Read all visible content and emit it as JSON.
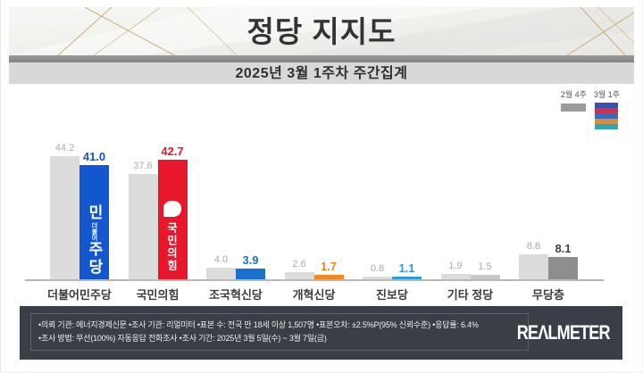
{
  "header": {
    "title": "정당 지지도",
    "subtitle": "2025년 3월 1주차 주간집계"
  },
  "legend": {
    "prev": {
      "label": "2월 4주",
      "color": "#9b9b9b"
    },
    "curr": {
      "label": "3월 1주",
      "colors": [
        "#3354b0",
        "#cc3350",
        "#2f6fc3",
        "#d98c44",
        "#2fa6b3"
      ]
    }
  },
  "chart_data": {
    "type": "bar",
    "title": "정당 지지도",
    "subtitle": "2025년 3월 1주차 주간집계",
    "categories": [
      "더불어민주당",
      "국민의힘",
      "조국혁신당",
      "개혁신당",
      "진보당",
      "기타 정당",
      "무당층"
    ],
    "series": [
      {
        "name": "2월 4주",
        "values": [
          44.2,
          37.6,
          4.0,
          2.6,
          0.8,
          1.9,
          8.8
        ]
      },
      {
        "name": "3월 1주",
        "values": [
          41.0,
          42.7,
          3.9,
          1.7,
          1.1,
          1.5,
          8.1
        ]
      }
    ],
    "prev_color": "#dcdcdc",
    "prev_label_color": "#ababab",
    "bar_colors": [
      "#1257cd",
      "#e8172c",
      "#1a70cc",
      "#f0861f",
      "#2b9dd6",
      "#c6c6c6",
      "#8e8e8e"
    ],
    "value_label_colors": [
      "#1257cd",
      "#e8172c",
      "#1a70cc",
      "#f0861f",
      "#2b9dd6",
      "#ababab",
      "#3f3f3f"
    ],
    "ylim": [
      0,
      50
    ],
    "grid": "off",
    "legend_position": "top-right",
    "unit": "%"
  },
  "overlays": {
    "minjoo": {
      "small": "더불어",
      "large": "민주당"
    },
    "ppp": {
      "text": "국민의힘"
    }
  },
  "footer": {
    "line1": "•의뢰 기관: 에너지경제신문  •조사 기관: 리얼미터 •표본 수: 전국 만 18세 이상 1,507명 •표본오차: ±2.5%P(95% 신뢰수준) •응답률: 6.4%",
    "line2": "•조사 방법: 무선(100%) 자동응답 전화조사 •조사 기간: 2025년 3월 5일(수) ~ 3월 7일(금)",
    "logo": "REΛLMETER"
  }
}
